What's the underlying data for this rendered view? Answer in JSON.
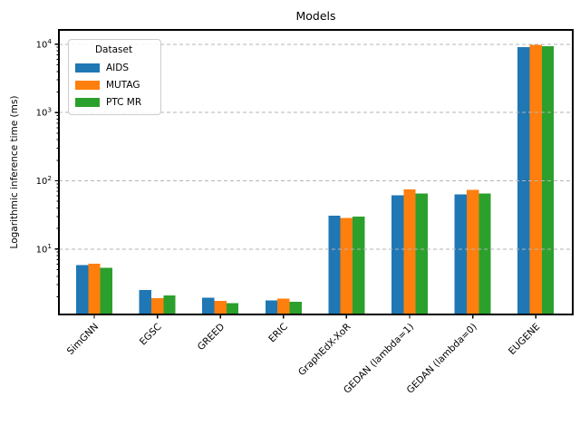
{
  "chart_data": {
    "type": "bar",
    "title": "Models",
    "xlabel": "",
    "ylabel": "Logarithmic inference time (ms)",
    "yscale": "log",
    "ylim": [
      1.1,
      16200
    ],
    "yticks": [
      "10^1",
      "10^2",
      "10^3",
      "10^4"
    ],
    "grid": "horizontal-dashed-major",
    "grid_color": "#b5b5b5",
    "categories": [
      "SimGNN",
      "EGSC",
      "GREED",
      "ERIC",
      "GraphEdX-XoR",
      "GEDAN (lambda=1)",
      "GEDAN (lambda=0)",
      "EUGENE"
    ],
    "series": [
      {
        "name": "AIDS",
        "color": "#1f77b4",
        "values": [
          5.8,
          2.5,
          1.95,
          1.78,
          31.0,
          61.0,
          63.0,
          9100
        ]
      },
      {
        "name": "MUTAG",
        "color": "#ff7f0e",
        "values": [
          6.1,
          1.9,
          1.73,
          1.87,
          28.5,
          75.0,
          74.0,
          9800
        ]
      },
      {
        "name": "PTC MR",
        "color": "#2ca02c",
        "values": [
          5.3,
          2.1,
          1.62,
          1.68,
          30.0,
          65.0,
          65.0,
          9300
        ]
      }
    ],
    "legend": {
      "title": "Dataset",
      "position": "upper-left",
      "labels": [
        "AIDS",
        "MUTAG",
        "PTC MR"
      ]
    }
  }
}
